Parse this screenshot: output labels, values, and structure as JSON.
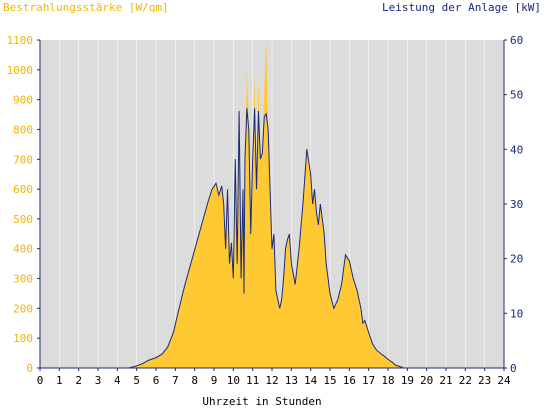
{
  "chart_data": {
    "type": "area",
    "title_left": "Bestrahlungsstärke [W/qm]",
    "title_right": "Leistung der Anlage [kW]",
    "xlabel": "Uhrzeit in Stunden",
    "xlim": [
      0,
      24
    ],
    "x_ticks": [
      "0",
      "1",
      "2",
      "3",
      "4",
      "5",
      "6",
      "7",
      "8",
      "9",
      "10",
      "11",
      "12",
      "13",
      "14",
      "15",
      "16",
      "17",
      "18",
      "19",
      "20",
      "21",
      "22",
      "23",
      "24"
    ],
    "y_left": {
      "lim": [
        0,
        1100
      ],
      "ticks": [
        "0",
        "100",
        "200",
        "300",
        "400",
        "500",
        "600",
        "700",
        "800",
        "900",
        "1000",
        "1100"
      ],
      "color": "#f5b400"
    },
    "y_right": {
      "lim": [
        0,
        60
      ],
      "ticks": [
        "0",
        "10",
        "20",
        "30",
        "40",
        "50",
        "60"
      ],
      "color": "#1a2a7a"
    },
    "colors": {
      "plot_bg": "#dcdcdc",
      "area_fill": "#ffc933",
      "line": "#1a2a7a",
      "axis": "#1a2a7a",
      "grid": "#ffffff"
    },
    "grid": true,
    "series": [
      {
        "name": "Bestrahlungsstärke",
        "axis": "left",
        "x": [
          0,
          4.6,
          5,
          5.3,
          5.6,
          6,
          6.3,
          6.6,
          6.9,
          7.2,
          7.5,
          7.8,
          8.1,
          8.4,
          8.7,
          8.9,
          9.1,
          9.25,
          9.4,
          9.5,
          9.6,
          9.7,
          9.8,
          9.9,
          10.0,
          10.1,
          10.2,
          10.3,
          10.4,
          10.5,
          10.55,
          10.6,
          10.7,
          10.8,
          10.9,
          11.0,
          11.1,
          11.2,
          11.3,
          11.4,
          11.5,
          11.6,
          11.7,
          11.8,
          11.9,
          12.0,
          12.1,
          12.2,
          12.3,
          12.4,
          12.5,
          12.6,
          12.7,
          12.8,
          12.9,
          13.0,
          13.2,
          13.4,
          13.6,
          13.8,
          14.0,
          14.1,
          14.2,
          14.3,
          14.4,
          14.5,
          14.6,
          14.7,
          14.8,
          14.9,
          15.0,
          15.2,
          15.4,
          15.6,
          15.8,
          16.0,
          16.2,
          16.4,
          16.6,
          16.7,
          16.8,
          17.0,
          17.2,
          17.4,
          17.6,
          17.8,
          18.0,
          18.2,
          18.4,
          18.6,
          18.8,
          19.0,
          19.2,
          19.4,
          19.6,
          19.8,
          20.0,
          20.2,
          24
        ],
        "y": [
          0,
          0,
          8,
          15,
          25,
          35,
          45,
          70,
          120,
          200,
          280,
          350,
          420,
          490,
          560,
          600,
          620,
          580,
          610,
          550,
          400,
          600,
          350,
          420,
          300,
          700,
          350,
          900,
          300,
          600,
          250,
          700,
          1000,
          800,
          450,
          700,
          980,
          600,
          970,
          700,
          720,
          930,
          1100,
          800,
          600,
          400,
          450,
          260,
          230,
          200,
          230,
          300,
          400,
          430,
          450,
          350,
          280,
          400,
          550,
          750,
          650,
          550,
          600,
          520,
          480,
          550,
          500,
          450,
          350,
          300,
          250,
          200,
          230,
          280,
          380,
          360,
          300,
          260,
          200,
          150,
          160,
          120,
          80,
          60,
          50,
          40,
          30,
          20,
          10,
          5,
          0,
          0,
          0,
          0,
          0,
          0,
          0,
          0,
          0
        ]
      },
      {
        "name": "Leistung der Anlage",
        "axis": "right",
        "x": [
          0,
          4.6,
          5,
          5.3,
          5.6,
          6,
          6.3,
          6.6,
          6.9,
          7.2,
          7.5,
          7.8,
          8.1,
          8.4,
          8.7,
          8.9,
          9.1,
          9.25,
          9.4,
          9.5,
          9.6,
          9.7,
          9.8,
          9.9,
          10.0,
          10.1,
          10.2,
          10.3,
          10.4,
          10.5,
          10.55,
          10.6,
          10.7,
          10.8,
          10.9,
          11.0,
          11.1,
          11.2,
          11.3,
          11.4,
          11.5,
          11.6,
          11.7,
          11.8,
          11.9,
          12.0,
          12.1,
          12.2,
          12.3,
          12.4,
          12.5,
          12.6,
          12.7,
          12.8,
          12.9,
          13.0,
          13.2,
          13.4,
          13.6,
          13.8,
          14.0,
          14.1,
          14.2,
          14.3,
          14.4,
          14.5,
          14.6,
          14.7,
          14.8,
          14.9,
          15.0,
          15.2,
          15.4,
          15.6,
          15.8,
          16.0,
          16.2,
          16.4,
          16.6,
          16.7,
          16.8,
          17.0,
          17.2,
          17.4,
          17.6,
          17.8,
          18.0,
          18.2,
          18.4,
          18.6,
          18.8,
          19.0,
          19.2,
          19.4,
          19.6,
          19.8,
          20.0,
          20.2,
          24
        ],
        "y": [
          0,
          0,
          0.4,
          0.8,
          1.4,
          1.9,
          2.5,
          3.8,
          6.5,
          11,
          15.3,
          19.1,
          22.9,
          26.7,
          30.5,
          32.7,
          33.8,
          31.6,
          33.3,
          30,
          21.8,
          32.7,
          19.1,
          22.9,
          16.4,
          38.2,
          19.1,
          47,
          16.4,
          32.7,
          13.6,
          38.2,
          47.5,
          43.6,
          24.5,
          38.2,
          47.5,
          32.7,
          47,
          38.2,
          39.3,
          46,
          46.5,
          43.6,
          32.7,
          21.8,
          24.5,
          14.2,
          12.5,
          10.9,
          12.5,
          16.4,
          21.8,
          23.5,
          24.5,
          19.1,
          15.3,
          21.8,
          30,
          40,
          35.5,
          30,
          32.7,
          28.4,
          26.2,
          30,
          27.3,
          24.5,
          19.1,
          16.4,
          13.6,
          10.9,
          12.5,
          15.3,
          20.7,
          19.6,
          16.4,
          14.2,
          10.9,
          8.2,
          8.7,
          6.5,
          4.4,
          3.3,
          2.7,
          2.2,
          1.6,
          1.1,
          0.5,
          0.3,
          0,
          0,
          0,
          0,
          0,
          0,
          0,
          0,
          0
        ]
      }
    ]
  }
}
